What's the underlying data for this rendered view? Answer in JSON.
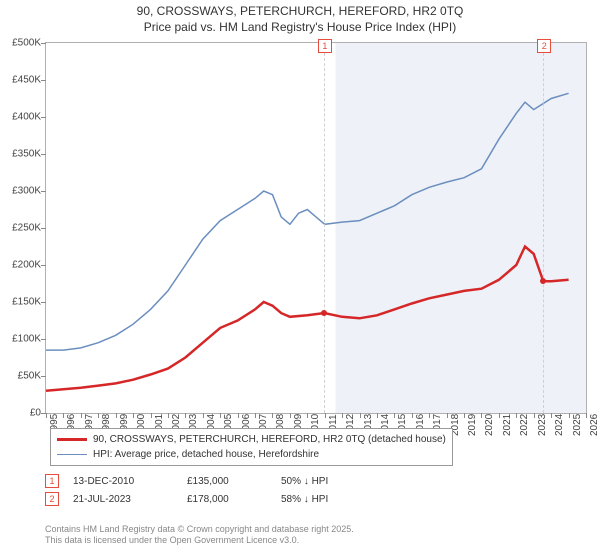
{
  "title_line1": "90, CROSSWAYS, PETERCHURCH, HEREFORD, HR2 0TQ",
  "title_line2": "Price paid vs. HM Land Registry's House Price Index (HPI)",
  "chart": {
    "type": "line",
    "background_color": "#ffffff",
    "shaded_background_color": "#eef2f8",
    "border_color": "#b0b0b0",
    "font_size_tick": 10,
    "x": {
      "min": 1995,
      "max": 2026,
      "tick_step": 1
    },
    "y": {
      "min": 0,
      "max": 500000,
      "tick_step": 50000,
      "prefix": "£",
      "suffix": "K",
      "divisor": 1000
    },
    "series": [
      {
        "name": "90, CROSSWAYS, PETERCHURCH, HEREFORD, HR2 0TQ (detached house)",
        "color": "#d62728",
        "width": 2.5,
        "points": [
          [
            1995,
            30000
          ],
          [
            1996,
            32000
          ],
          [
            1997,
            34000
          ],
          [
            1998,
            37000
          ],
          [
            1999,
            40000
          ],
          [
            2000,
            45000
          ],
          [
            2001,
            52000
          ],
          [
            2002,
            60000
          ],
          [
            2003,
            75000
          ],
          [
            2004,
            95000
          ],
          [
            2005,
            115000
          ],
          [
            2006,
            125000
          ],
          [
            2007,
            140000
          ],
          [
            2007.5,
            150000
          ],
          [
            2008,
            145000
          ],
          [
            2008.5,
            135000
          ],
          [
            2009,
            130000
          ],
          [
            2010,
            132000
          ],
          [
            2010.95,
            135000
          ],
          [
            2011,
            135000
          ],
          [
            2012,
            130000
          ],
          [
            2013,
            128000
          ],
          [
            2014,
            132000
          ],
          [
            2015,
            140000
          ],
          [
            2016,
            148000
          ],
          [
            2017,
            155000
          ],
          [
            2018,
            160000
          ],
          [
            2019,
            165000
          ],
          [
            2020,
            168000
          ],
          [
            2021,
            180000
          ],
          [
            2022,
            200000
          ],
          [
            2022.5,
            225000
          ],
          [
            2023,
            215000
          ],
          [
            2023.55,
            178000
          ],
          [
            2024,
            178000
          ],
          [
            2025,
            180000
          ]
        ]
      },
      {
        "name": "HPI: Average price, detached house, Herefordshire",
        "color": "#6b8ebf",
        "width": 1.5,
        "points": [
          [
            1995,
            85000
          ],
          [
            1996,
            85000
          ],
          [
            1997,
            88000
          ],
          [
            1998,
            95000
          ],
          [
            1999,
            105000
          ],
          [
            2000,
            120000
          ],
          [
            2001,
            140000
          ],
          [
            2002,
            165000
          ],
          [
            2003,
            200000
          ],
          [
            2004,
            235000
          ],
          [
            2005,
            260000
          ],
          [
            2006,
            275000
          ],
          [
            2007,
            290000
          ],
          [
            2007.5,
            300000
          ],
          [
            2008,
            295000
          ],
          [
            2008.5,
            265000
          ],
          [
            2009,
            255000
          ],
          [
            2009.5,
            270000
          ],
          [
            2010,
            275000
          ],
          [
            2010.5,
            265000
          ],
          [
            2011,
            255000
          ],
          [
            2012,
            258000
          ],
          [
            2013,
            260000
          ],
          [
            2014,
            270000
          ],
          [
            2015,
            280000
          ],
          [
            2016,
            295000
          ],
          [
            2017,
            305000
          ],
          [
            2018,
            312000
          ],
          [
            2019,
            318000
          ],
          [
            2020,
            330000
          ],
          [
            2021,
            370000
          ],
          [
            2022,
            405000
          ],
          [
            2022.5,
            420000
          ],
          [
            2023,
            410000
          ],
          [
            2024,
            425000
          ],
          [
            2025,
            432000
          ]
        ]
      }
    ],
    "shade_start_year": 2011.62,
    "markers": [
      {
        "num": "1",
        "year": 2010.95,
        "price": 135000
      },
      {
        "num": "2",
        "year": 2023.55,
        "price": 178000
      }
    ]
  },
  "legend": {
    "items": [
      {
        "color": "#d62728",
        "width": 2.5,
        "label": "90, CROSSWAYS, PETERCHURCH, HEREFORD, HR2 0TQ (detached house)"
      },
      {
        "color": "#6b8ebf",
        "width": 1.5,
        "label": "HPI: Average price, detached house, Herefordshire"
      }
    ]
  },
  "events": [
    {
      "num": "1",
      "date": "13-DEC-2010",
      "price": "£135,000",
      "pct": "50% ↓ HPI"
    },
    {
      "num": "2",
      "date": "21-JUL-2023",
      "price": "£178,000",
      "pct": "58% ↓ HPI"
    }
  ],
  "sources_line1": "Contains HM Land Registry data © Crown copyright and database right 2025.",
  "sources_line2": "This data is licensed under the Open Government Licence v3.0."
}
